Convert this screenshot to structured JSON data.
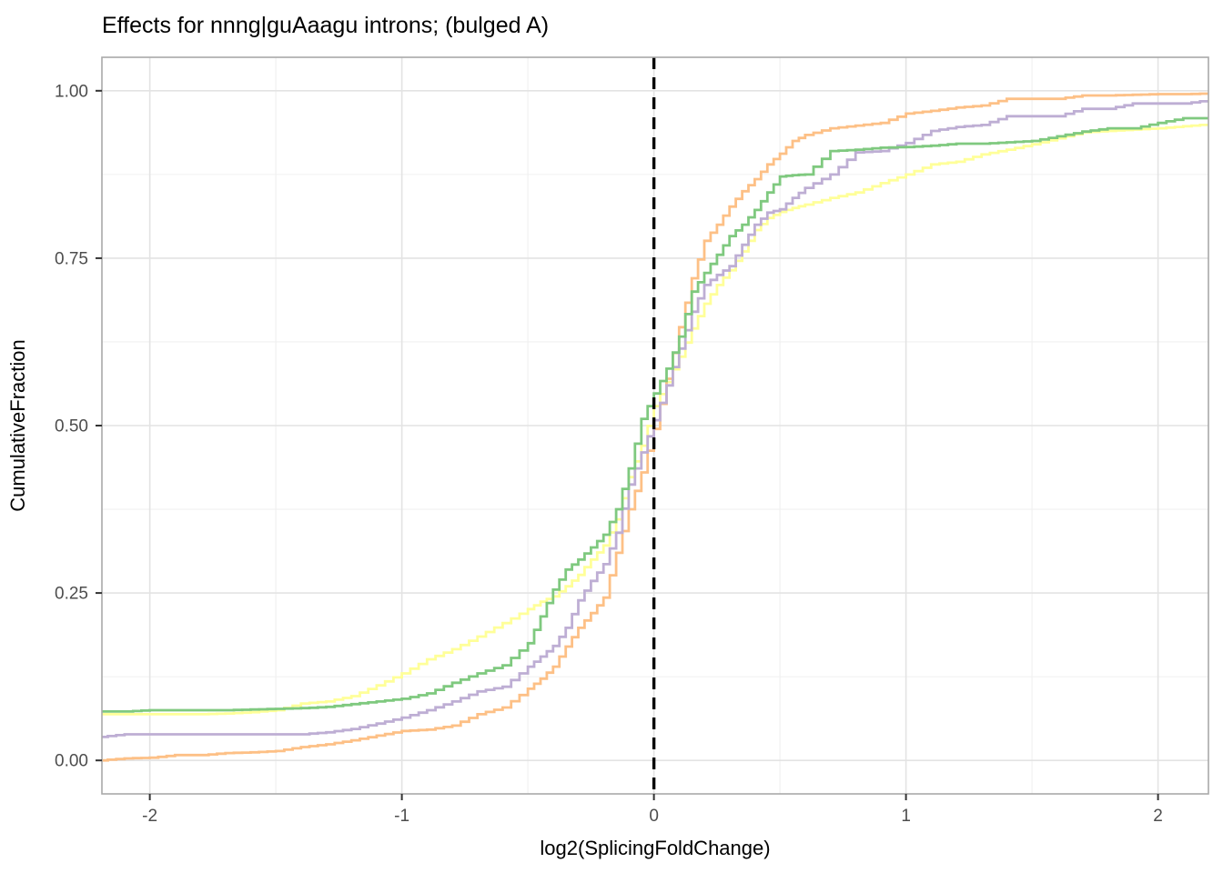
{
  "chart_data": {
    "type": "line",
    "subtype": "ecdf-step",
    "title": "Effects for nnng|guAaagu introns; (bulged A)",
    "xlabel": "log2(SplicingFoldChange)",
    "ylabel": "CumulativeFraction",
    "xlim": [
      -2.19,
      2.2
    ],
    "ylim": [
      -0.05,
      1.05
    ],
    "grid": true,
    "legend_position": "none",
    "x_major_ticks": {
      "values": [
        -2,
        -1,
        0,
        1,
        2
      ],
      "labels": [
        "-2",
        "-1",
        "0",
        "1",
        "2"
      ]
    },
    "y_major_ticks": {
      "values": [
        0,
        0.25,
        0.5,
        0.75,
        1
      ],
      "labels": [
        "0.00",
        "0.25",
        "0.50",
        "0.75",
        "1.00"
      ]
    },
    "x_minor_gridlines": [
      -1.5,
      -0.5,
      0.5,
      1.5
    ],
    "y_minor_gridlines": [
      0.125,
      0.375,
      0.625,
      0.875
    ],
    "reference_vline": {
      "x": 0,
      "color": "#000000",
      "style": "dashed"
    },
    "x": [
      -2.2,
      -2.1,
      -2.0,
      -1.9,
      -1.8,
      -1.7,
      -1.6,
      -1.5,
      -1.4,
      -1.3,
      -1.2,
      -1.1,
      -1.0,
      -0.9,
      -0.8,
      -0.7,
      -0.6,
      -0.5,
      -0.45,
      -0.4,
      -0.35,
      -0.3,
      -0.25,
      -0.2,
      -0.15,
      -0.1,
      -0.05,
      0,
      0.05,
      0.1,
      0.15,
      0.2,
      0.25,
      0.3,
      0.35,
      0.4,
      0.45,
      0.5,
      0.55,
      0.6,
      0.7,
      0.8,
      0.9,
      1.0,
      1.1,
      1.2,
      1.3,
      1.4,
      1.5,
      1.6,
      1.7,
      1.8,
      1.9,
      2.0,
      2.1,
      2.2
    ],
    "series": [
      {
        "name": "yellow",
        "color": "#FFFF99",
        "values": [
          0.069,
          0.069,
          0.069,
          0.069,
          0.069,
          0.07,
          0.072,
          0.075,
          0.085,
          0.088,
          0.096,
          0.112,
          0.13,
          0.151,
          0.166,
          0.185,
          0.205,
          0.226,
          0.237,
          0.245,
          0.26,
          0.277,
          0.3,
          0.321,
          0.36,
          0.423,
          0.47,
          0.529,
          0.565,
          0.603,
          0.645,
          0.682,
          0.71,
          0.732,
          0.76,
          0.792,
          0.81,
          0.819,
          0.825,
          0.83,
          0.84,
          0.848,
          0.862,
          0.875,
          0.89,
          0.894,
          0.905,
          0.912,
          0.92,
          0.929,
          0.938,
          0.94,
          0.942,
          0.944,
          0.947,
          0.95
        ]
      },
      {
        "name": "orange",
        "color": "#FDC086",
        "values": [
          0.0,
          0.003,
          0.004,
          0.008,
          0.008,
          0.011,
          0.012,
          0.014,
          0.02,
          0.024,
          0.03,
          0.037,
          0.044,
          0.046,
          0.052,
          0.069,
          0.079,
          0.107,
          0.122,
          0.14,
          0.17,
          0.198,
          0.22,
          0.243,
          0.31,
          0.375,
          0.43,
          0.495,
          0.57,
          0.647,
          0.72,
          0.776,
          0.8,
          0.827,
          0.85,
          0.868,
          0.89,
          0.906,
          0.925,
          0.934,
          0.944,
          0.948,
          0.952,
          0.966,
          0.97,
          0.975,
          0.978,
          0.988,
          0.988,
          0.988,
          0.993,
          0.993,
          0.994,
          0.995,
          0.995,
          0.996
        ]
      },
      {
        "name": "purple",
        "color": "#BEAED4",
        "values": [
          0.035,
          0.039,
          0.039,
          0.039,
          0.039,
          0.039,
          0.039,
          0.039,
          0.039,
          0.042,
          0.047,
          0.055,
          0.064,
          0.075,
          0.088,
          0.103,
          0.11,
          0.14,
          0.155,
          0.171,
          0.198,
          0.239,
          0.268,
          0.293,
          0.34,
          0.412,
          0.46,
          0.508,
          0.56,
          0.615,
          0.67,
          0.71,
          0.725,
          0.738,
          0.77,
          0.8,
          0.818,
          0.823,
          0.84,
          0.855,
          0.875,
          0.908,
          0.91,
          0.922,
          0.94,
          0.946,
          0.949,
          0.962,
          0.962,
          0.962,
          0.973,
          0.973,
          0.981,
          0.981,
          0.981,
          0.986
        ]
      },
      {
        "name": "green",
        "color": "#7FC97F",
        "values": [
          0.073,
          0.073,
          0.075,
          0.075,
          0.075,
          0.075,
          0.076,
          0.077,
          0.078,
          0.08,
          0.084,
          0.088,
          0.092,
          0.1,
          0.116,
          0.13,
          0.142,
          0.175,
          0.215,
          0.255,
          0.285,
          0.3,
          0.318,
          0.337,
          0.375,
          0.436,
          0.51,
          0.548,
          0.585,
          0.633,
          0.7,
          0.728,
          0.755,
          0.783,
          0.8,
          0.822,
          0.848,
          0.872,
          0.874,
          0.875,
          0.91,
          0.912,
          0.915,
          0.916,
          0.918,
          0.921,
          0.921,
          0.923,
          0.925,
          0.932,
          0.939,
          0.944,
          0.944,
          0.952,
          0.959,
          0.959
        ]
      }
    ]
  }
}
